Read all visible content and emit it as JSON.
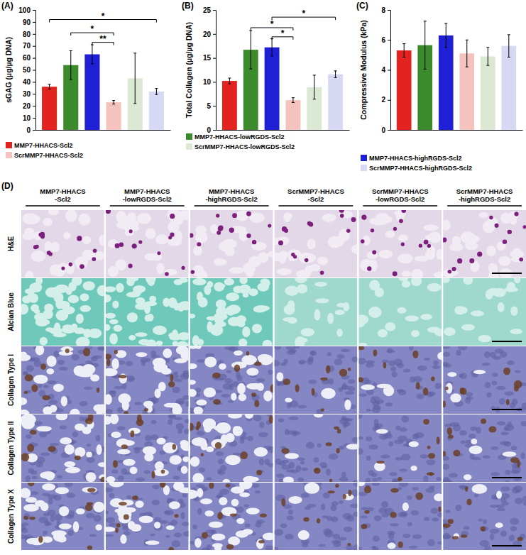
{
  "chart_data": [
    {
      "type": "bar",
      "panel": "(A)",
      "y_label": "sGAG (µg/µg DNA)",
      "categories": [
        "MMP7-HHACS-Scl2",
        "MMP7-HHACS-lowRGDS-Scl2",
        "MMP7-HHACS-highRGDS-Scl2",
        "ScrMMP7-HHACS-Scl2",
        "ScrMMP7-HHACS-lowRGDS-Scl2",
        "ScrMMP7-HHACS-highRGDS-Scl2"
      ],
      "values": [
        36,
        54,
        63,
        23,
        43,
        32
      ],
      "errors": [
        2,
        12,
        8,
        1.5,
        21,
        2.5
      ],
      "colors": [
        "#e3231f",
        "#3b8a2b",
        "#1f1fd6",
        "#f4c3bd",
        "#dbe8d3",
        "#d6d8f4"
      ],
      "ylim": [
        0,
        100
      ],
      "yticks": [
        0,
        10,
        20,
        30,
        40,
        50,
        60,
        70,
        80,
        90,
        100
      ],
      "tick_labels": "y",
      "legend_entries": [
        "MMP7-HHACS-Scl2",
        "ScrMMP7-HHACS-Scl2"
      ],
      "brackets": [
        {
          "from": "MMP7-HHACS-Scl2",
          "to": "ScrMMP7-HHACS-highRGDS-Scl2",
          "y": 92,
          "label": "*"
        },
        {
          "from": "MMP7-HHACS-lowRGDS-Scl2",
          "to": "ScrMMP7-HHACS-Scl2",
          "y": 81,
          "label": "*"
        },
        {
          "from": "MMP7-HHACS-highRGDS-Scl2",
          "to": "ScrMMP7-HHACS-Scl2",
          "y": 73,
          "label": "**"
        }
      ]
    },
    {
      "type": "bar",
      "panel": "(B)",
      "y_label": "Total Collagen (µg/µg DNA)",
      "categories": [
        "MMP7-HHACS-Scl2",
        "MMP7-HHACS-lowRGDS-Scl2",
        "MMP7-HHACS-highRGDS-Scl2",
        "ScrMMP7-HHACS-Scl2",
        "ScrMMP7-HHACS-lowRGDS-Scl2",
        "ScrMMP7-HHACS-highRGDS-Scl2"
      ],
      "values": [
        10.2,
        16.7,
        17.2,
        6.2,
        8.9,
        11.6
      ],
      "errors": [
        0.6,
        4,
        1.8,
        0.5,
        2.5,
        0.7
      ],
      "colors": [
        "#e3231f",
        "#3b8a2b",
        "#1f1fd6",
        "#f4c3bd",
        "#dbe8d3",
        "#d6d8f4"
      ],
      "ylim": [
        0,
        25
      ],
      "yticks": [
        0,
        5,
        10,
        15,
        20,
        25
      ],
      "tick_labels": "y",
      "legend_entries": [
        "MMP7-HHACS-lowRGDS-Scl2",
        "ScrMMP7-HHACS-lowRGDS-Scl2"
      ],
      "brackets": [
        {
          "from": "MMP7-HHACS-highRGDS-Scl2",
          "to": "ScrMMP7-HHACS-highRGDS-Scl2",
          "y": 23.5,
          "label": "*"
        },
        {
          "from": "MMP7-HHACS-lowRGDS-Scl2",
          "to": "ScrMMP7-HHACS-Scl2",
          "y": 21.3,
          "label": "*"
        },
        {
          "from": "MMP7-HHACS-highRGDS-Scl2",
          "to": "ScrMMP7-HHACS-Scl2",
          "y": 19.4,
          "label": "*"
        }
      ]
    },
    {
      "type": "bar",
      "panel": "(C)",
      "y_label": "Compressive Modulus (kPa)",
      "categories": [
        "MMP7-HHACS-Scl2",
        "MMP7-HHACS-lowRGDS-Scl2",
        "MMP7-HHACS-highRGDS-Scl2",
        "ScrMMP7-HHACS-Scl2",
        "ScrMMP7-HHACS-lowRGDS-Scl2",
        "ScrMMP7-HHACS-highRGDS-Scl2"
      ],
      "values": [
        5.3,
        5.65,
        6.3,
        5.1,
        4.9,
        5.6
      ],
      "errors": [
        0.45,
        1.6,
        0.8,
        0.9,
        0.6,
        0.75
      ],
      "colors": [
        "#e3231f",
        "#3b8a2b",
        "#1f1fd6",
        "#f4c3bd",
        "#dbe8d3",
        "#d6d8f4"
      ],
      "ylim": [
        0,
        8
      ],
      "yticks": [
        0,
        2,
        4,
        6,
        8
      ],
      "tick_labels": "y",
      "legend_entries": [
        "MMP7-HHACS-highRGDS-Scl2",
        "ScrMMP7-HHACS-highRGDS-Scl2"
      ]
    }
  ],
  "panel_d": {
    "label": "(D)",
    "columns": [
      [
        "MMP7-HHACS",
        "-Scl2"
      ],
      [
        "MMP7-HHACS",
        "-lowRGDS-Scl2"
      ],
      [
        "MMP7-HHACS",
        "-highRGDS-Scl2"
      ],
      [
        "ScrMMP7-HHACS",
        "-Scl2"
      ],
      [
        "ScrMMP7-HHACS",
        "-lowRGDS-Scl2"
      ],
      [
        "ScrMMP7-HHACS",
        "-highRGDS-Scl2"
      ]
    ],
    "rows": [
      "H&E",
      "Alcian Blue",
      "Collagen Type I",
      "Collagen Type II",
      "Collagen Type X"
    ]
  }
}
